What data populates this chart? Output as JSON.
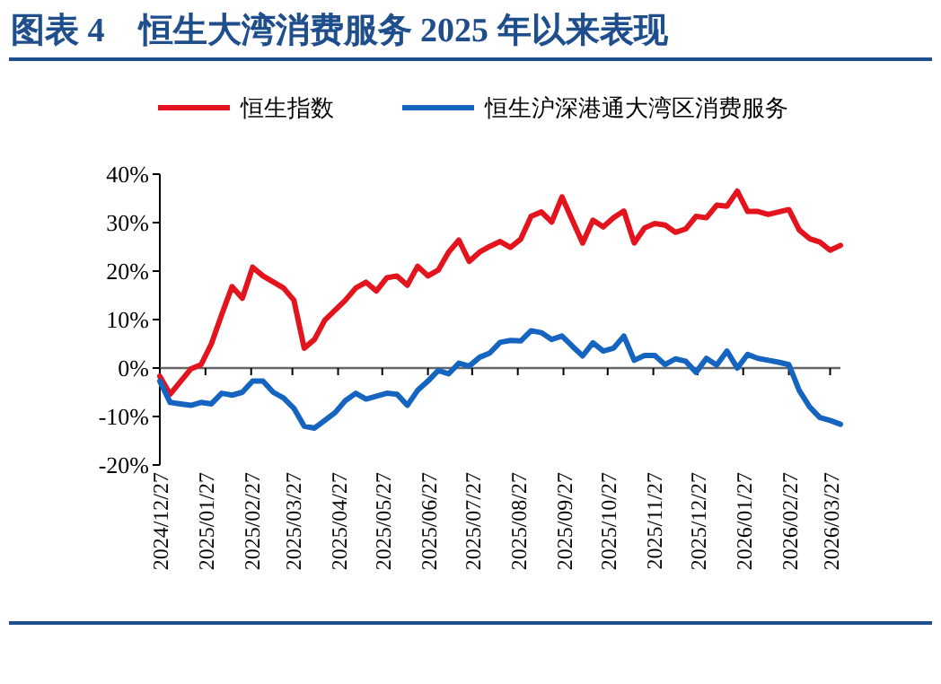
{
  "chart_data": {
    "type": "line",
    "title": "图表 4　恒生大湾消费服务 2025 年以来表现",
    "legend": "top",
    "grid": false,
    "ref_lines": [
      {
        "axis": "y",
        "value": 0,
        "color": "#666666"
      }
    ],
    "marker": "none",
    "line_style": "solid",
    "xlim": [
      "2024-12-27",
      "2026-04-03"
    ],
    "xticks": [
      {
        "value": "2024-12-27",
        "label": "2024/12/27"
      },
      {
        "value": "2025-01-27",
        "label": "2025/01/27"
      },
      {
        "value": "2025-02-27",
        "label": "2025/02/27"
      },
      {
        "value": "2025-03-27",
        "label": "2025/03/27"
      },
      {
        "value": "2025-04-27",
        "label": "2025/04/27"
      },
      {
        "value": "2025-05-27",
        "label": "2025/05/27"
      },
      {
        "value": "2025-06-27",
        "label": "2025/06/27"
      },
      {
        "value": "2025-07-27",
        "label": "2025/07/27"
      },
      {
        "value": "2025-08-27",
        "label": "2025/08/27"
      },
      {
        "value": "2025-09-27",
        "label": "2025/09/27"
      },
      {
        "value": "2025-10-27",
        "label": "2025/10/27"
      },
      {
        "value": "2025-11-27",
        "label": "2025/11/27"
      },
      {
        "value": "2025-12-27",
        "label": "2025/12/27"
      },
      {
        "value": "2026-01-27",
        "label": "2026/01/27"
      },
      {
        "value": "2026-02-27",
        "label": "2026/02/27"
      },
      {
        "value": "2026-03-27",
        "label": "2026/03/27"
      }
    ],
    "ylim": [
      -20,
      40
    ],
    "yticks": [
      {
        "value": -20,
        "label": "-20%"
      },
      {
        "value": -10,
        "label": "-10%"
      },
      {
        "value": 0,
        "label": "0%"
      },
      {
        "value": 10,
        "label": "10%"
      },
      {
        "value": 20,
        "label": "20%"
      },
      {
        "value": 30,
        "label": "30%"
      },
      {
        "value": 40,
        "label": "40%"
      }
    ],
    "series": [
      {
        "name": "恒生指数",
        "color": "#e3141e",
        "x": [
          "2024-12-27",
          "2025-01-03",
          "2025-01-17",
          "2025-01-24",
          "2025-01-31",
          "2025-02-07",
          "2025-02-14",
          "2025-02-21",
          "2025-02-28",
          "2025-03-07",
          "2025-03-21",
          "2025-03-28",
          "2025-04-04",
          "2025-04-11",
          "2025-04-18",
          "2025-05-02",
          "2025-05-09",
          "2025-05-16",
          "2025-05-23",
          "2025-05-30",
          "2025-06-06",
          "2025-06-13",
          "2025-06-20",
          "2025-06-27",
          "2025-07-04",
          "2025-07-11",
          "2025-07-18",
          "2025-07-25",
          "2025-08-01",
          "2025-08-08",
          "2025-08-15",
          "2025-08-22",
          "2025-08-29",
          "2025-09-05",
          "2025-09-12",
          "2025-09-19",
          "2025-09-26",
          "2025-10-03",
          "2025-10-10",
          "2025-10-17",
          "2025-10-24",
          "2025-10-31",
          "2025-11-07",
          "2025-11-14",
          "2025-11-21",
          "2025-11-28",
          "2025-12-05",
          "2025-12-12",
          "2025-12-19",
          "2025-12-26",
          "2026-01-02",
          "2026-01-09",
          "2026-01-16",
          "2026-01-23",
          "2026-01-30",
          "2026-02-06",
          "2026-02-13",
          "2026-02-20",
          "2026-02-27",
          "2026-03-06",
          "2026-03-13",
          "2026-03-20",
          "2026-03-27",
          "2026-04-03"
        ],
        "values": [
          -1.7,
          -5.4,
          -0.2,
          0.7,
          5,
          11,
          16.8,
          14.4,
          20.8,
          19,
          16.5,
          14,
          4.1,
          5.9,
          9.9,
          14,
          16.5,
          17.7,
          15.9,
          18.6,
          19,
          17.1,
          21,
          19,
          20.2,
          23.9,
          26.4,
          22,
          23.9,
          25.1,
          26.1,
          24.9,
          26.6,
          31.3,
          32.2,
          30.1,
          35.3,
          30.5,
          25.8,
          30.5,
          29.1,
          31,
          32.4,
          25.8,
          28.9,
          29.8,
          29.5,
          28,
          28.7,
          31.3,
          31,
          33.6,
          33.4,
          36.5,
          32.3,
          32.3,
          31.7,
          32.2,
          32.7,
          28.5,
          26.7,
          26,
          24.3,
          25.3
        ]
      },
      {
        "name": "恒生沪深港通大湾区消费服务",
        "color": "#1565c0",
        "x": [
          "2024-12-27",
          "2025-01-03",
          "2025-01-10",
          "2025-01-17",
          "2025-01-24",
          "2025-01-31",
          "2025-02-07",
          "2025-02-14",
          "2025-02-21",
          "2025-02-28",
          "2025-03-07",
          "2025-03-14",
          "2025-03-21",
          "2025-03-28",
          "2025-04-04",
          "2025-04-11",
          "2025-04-18",
          "2025-04-25",
          "2025-05-02",
          "2025-05-09",
          "2025-05-16",
          "2025-05-23",
          "2025-05-30",
          "2025-06-06",
          "2025-06-13",
          "2025-06-20",
          "2025-06-27",
          "2025-07-04",
          "2025-07-11",
          "2025-07-18",
          "2025-07-25",
          "2025-08-01",
          "2025-08-08",
          "2025-08-15",
          "2025-08-22",
          "2025-08-29",
          "2025-09-05",
          "2025-09-12",
          "2025-09-19",
          "2025-09-26",
          "2025-10-03",
          "2025-10-10",
          "2025-10-17",
          "2025-10-24",
          "2025-10-31",
          "2025-11-07",
          "2025-11-14",
          "2025-11-21",
          "2025-11-28",
          "2025-12-05",
          "2025-12-12",
          "2025-12-19",
          "2025-12-26",
          "2026-01-02",
          "2026-01-09",
          "2026-01-16",
          "2026-01-23",
          "2026-01-30",
          "2026-02-06",
          "2026-02-13",
          "2026-02-20",
          "2026-02-27",
          "2026-03-06",
          "2026-03-13",
          "2026-03-20",
          "2026-03-27",
          "2026-04-03"
        ],
        "values": [
          -2.7,
          -7.1,
          -7.4,
          -7.7,
          -7.1,
          -7.4,
          -5.2,
          -5.6,
          -5,
          -2.7,
          -2.7,
          -5,
          -6.2,
          -8.3,
          -12,
          -12.4,
          -10.8,
          -9.2,
          -6.7,
          -5.2,
          -6.4,
          -5.8,
          -5.2,
          -5.4,
          -7.7,
          -4.6,
          -2.7,
          -0.5,
          -1.2,
          1,
          0.4,
          2.2,
          3.1,
          5.3,
          5.7,
          5.6,
          7.7,
          7.3,
          5.9,
          6.6,
          4.5,
          2.5,
          5.2,
          3.5,
          4.1,
          6.6,
          1.6,
          2.6,
          2.6,
          0.7,
          1.9,
          1.4,
          -0.9,
          2,
          0.6,
          3.5,
          0,
          2.8,
          2,
          1.6,
          1.2,
          0.7,
          -4.6,
          -8,
          -10.2,
          -10.8,
          -11.6
        ]
      }
    ]
  }
}
